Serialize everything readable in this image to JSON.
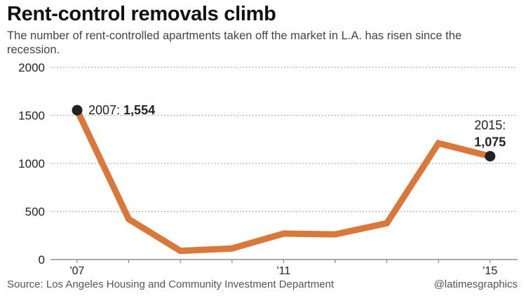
{
  "header": {
    "title": "Rent-control removals climb",
    "subtitle": "The number of rent-controlled apartments taken off the market in L.A. has risen since the recession."
  },
  "footer": {
    "source": "Source: Los Angeles Housing and Community Investment Department",
    "credit": "@latimesgraphics"
  },
  "chart_data": {
    "type": "line",
    "title": "Rent-control removals climb",
    "subtitle": "The number of rent-controlled apartments taken off the market in L.A. has risen since the recession.",
    "x": [
      2007,
      2008,
      2009,
      2010,
      2011,
      2012,
      2013,
      2014,
      2015
    ],
    "series": [
      {
        "values": [
          1554,
          420,
          90,
          115,
          270,
          262,
          378,
          1210,
          1075
        ]
      }
    ],
    "ylim": [
      0,
      2000
    ],
    "y_ticks": [
      "0",
      "500",
      "1000",
      "1500",
      "2000"
    ],
    "x_ticks": [
      {
        "x": 2007,
        "label": "'07"
      },
      {
        "x": 2011,
        "label": "'11"
      },
      {
        "x": 2015,
        "label": "'15"
      }
    ],
    "annotations": [
      {
        "x": 2007,
        "y": 1554,
        "year": "2007:",
        "value": "1,554"
      },
      {
        "x": 2015,
        "y": 1075,
        "year": "2015:",
        "value": "1,075"
      }
    ],
    "grid": "horizontal dotted",
    "line_color": "#d9783a",
    "marker_color": "#222222"
  }
}
